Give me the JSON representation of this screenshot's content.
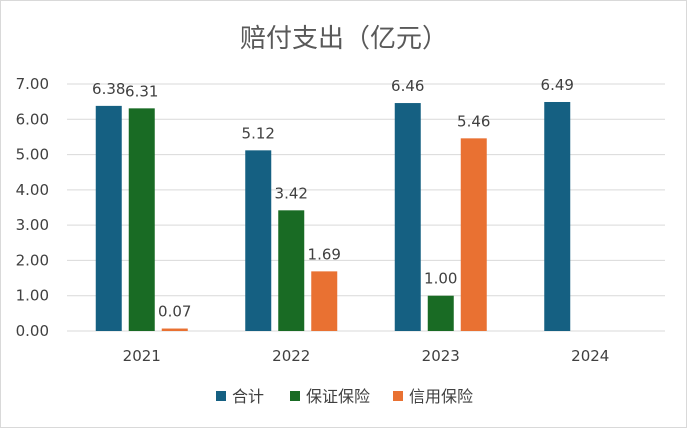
{
  "chart_data": {
    "type": "bar",
    "title": "赔付支出（亿元）",
    "categories": [
      "2021",
      "2022",
      "2023",
      "2024"
    ],
    "series": [
      {
        "name": "合计",
        "color": "#156082",
        "values": [
          6.38,
          5.12,
          6.46,
          6.49
        ]
      },
      {
        "name": "保证保险",
        "color": "#196B24",
        "values": [
          6.31,
          3.42,
          1.0,
          null
        ]
      },
      {
        "name": "信用保险",
        "color": "#E97132",
        "values": [
          0.07,
          1.69,
          5.46,
          null
        ]
      }
    ],
    "value_labels": [
      [
        "6.38",
        "5.12",
        "6.46",
        "6.49"
      ],
      [
        "6.31",
        "3.42",
        "1.00",
        ""
      ],
      [
        "0.07",
        "1.69",
        "5.46",
        ""
      ]
    ],
    "ylim": [
      0,
      7
    ],
    "yticks": [
      "0.00",
      "1.00",
      "2.00",
      "3.00",
      "4.00",
      "5.00",
      "6.00",
      "7.00"
    ],
    "grid": true,
    "legend": "bottom"
  }
}
